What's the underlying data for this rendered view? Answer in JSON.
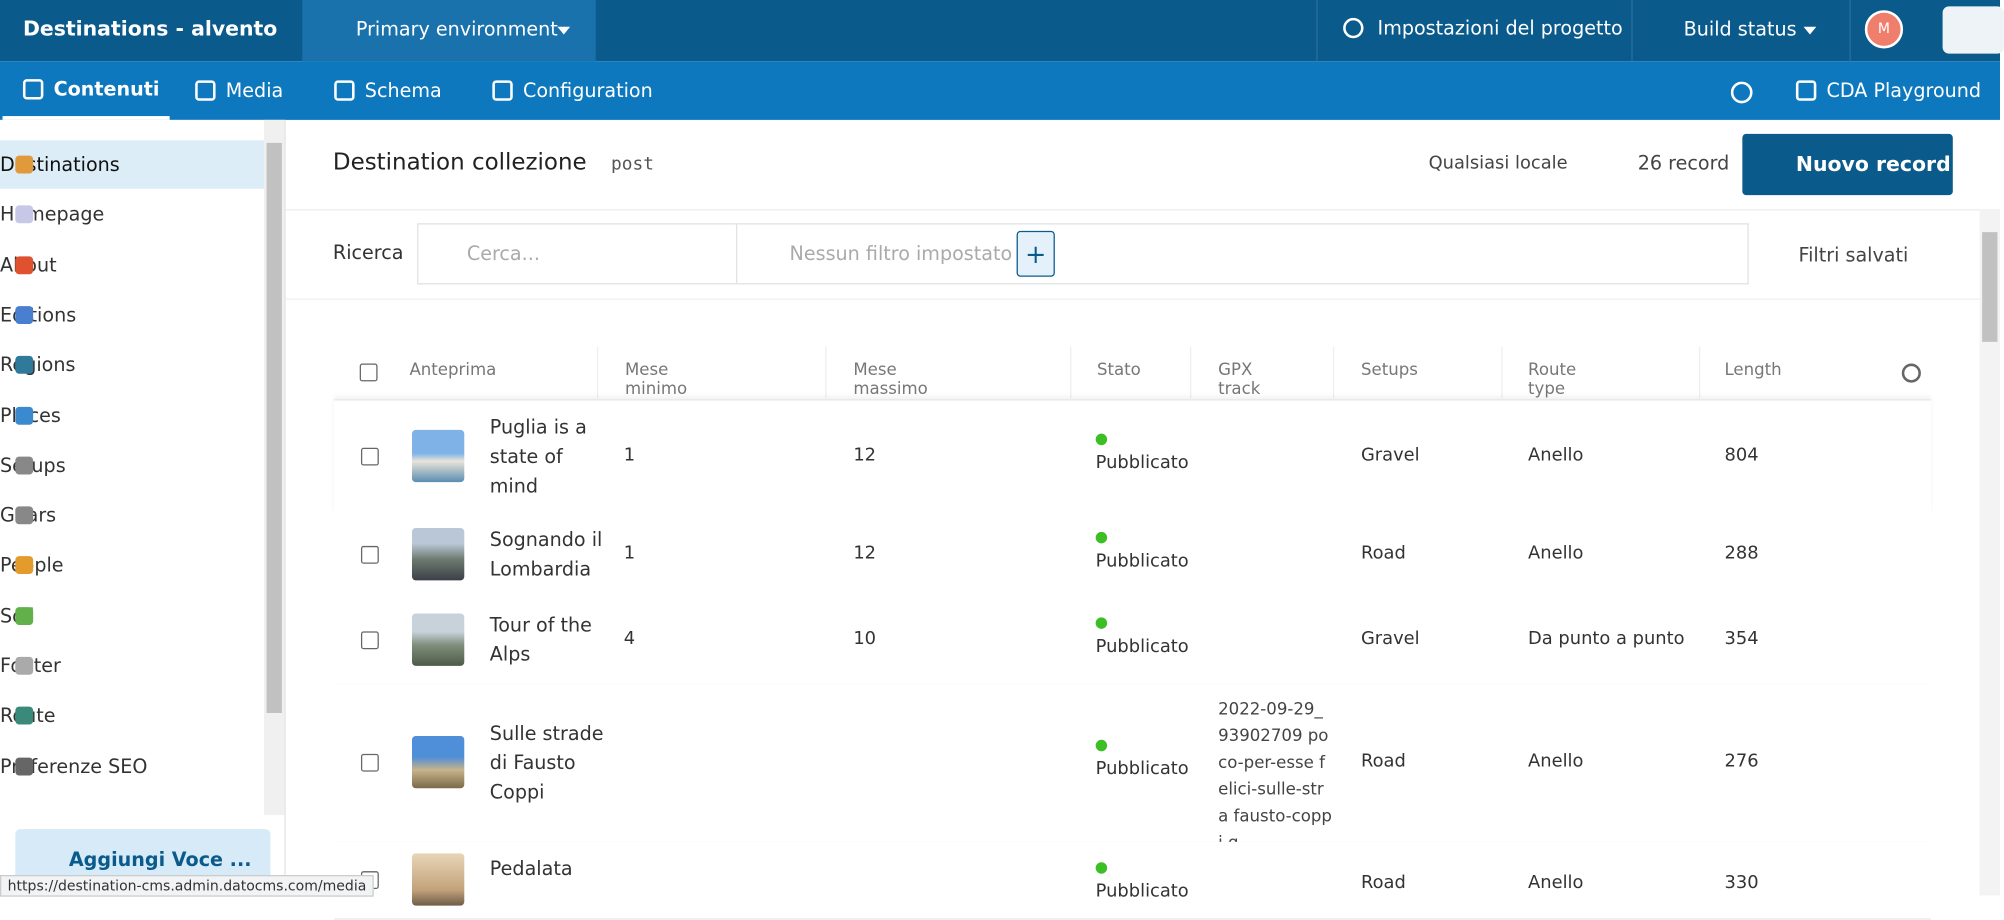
{
  "header": {
    "project": "Destinations - alvento",
    "environment": "Primary environment",
    "settings": "Impostazioni del progetto",
    "build": "Build status",
    "avatar": "M"
  },
  "nav": {
    "tabs": [
      "Contenuti",
      "Media",
      "Schema",
      "Configuration"
    ],
    "cda": "CDA Playground"
  },
  "sidebar": {
    "items": [
      "Destinations",
      "Homepage",
      "About",
      "Editions",
      "Regions",
      "Places",
      "Setups",
      "Gears",
      "People",
      "Soil",
      "Footer",
      "Route",
      "Preferenze SEO"
    ],
    "add": "Aggiungi Voce ..."
  },
  "main": {
    "title": "Destination collezione",
    "api": "post",
    "locale": "Qualsiasi locale",
    "count": "26 record",
    "new": "Nuovo record"
  },
  "search": {
    "label": "Ricerca",
    "placeholder": "Cerca...",
    "filter": "Nessun filtro impostato",
    "saved": "Filtri salvati"
  },
  "table": {
    "columns": [
      "Anteprima",
      "Mese minimo",
      "Mese massimo",
      "Stato",
      "GPX track",
      "Setups",
      "Route type",
      "Length"
    ],
    "rows": [
      {
        "title": "Puglia is a state of mind",
        "min": "1",
        "max": "12",
        "status": "Pubblicato",
        "gpx": "",
        "setups": "Gravel",
        "route": "Anello",
        "length": "804"
      },
      {
        "title": "Sognando il Lombardia",
        "min": "1",
        "max": "12",
        "status": "Pubblicato",
        "gpx": "",
        "setups": "Road",
        "route": "Anello",
        "length": "288"
      },
      {
        "title": "Tour of the Alps",
        "min": "4",
        "max": "10",
        "status": "Pubblicato",
        "gpx": "",
        "setups": "Gravel",
        "route": "Da punto a punto",
        "length": "354"
      },
      {
        "title": "Sulle strade di Fausto Coppi",
        "min": "",
        "max": "",
        "status": "Pubblicato",
        "gpx": "2022-09-29_93902709 poco-per-esse felici-sulle-stra fausto-coppi.g",
        "setups": "Road",
        "route": "Anello",
        "length": "276"
      },
      {
        "title": "Pedalata",
        "min": "",
        "max": "",
        "status": "Pubblicato",
        "gpx": "",
        "setups": "Road",
        "route": "Anello",
        "length": "330"
      }
    ]
  },
  "status_url": "https://destination-cms.admin.datocms.com/media"
}
